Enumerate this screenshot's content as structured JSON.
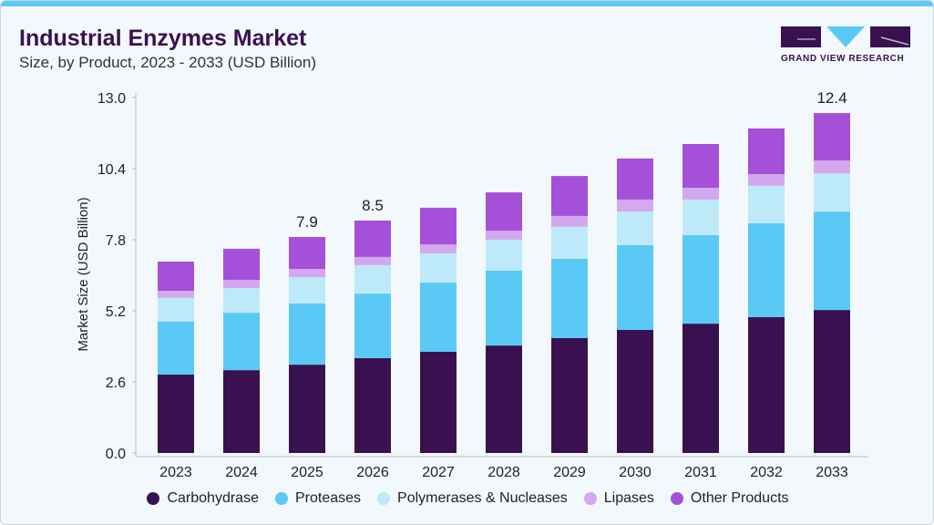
{
  "header": {
    "title": "Industrial Enzymes Market",
    "subtitle": "Size, by Product, 2023 - 2033 (USD Billion)",
    "logo_text": "GRAND VIEW RESEARCH"
  },
  "chart_data": {
    "type": "bar",
    "stacked": true,
    "title": "Industrial Enzymes Market",
    "subtitle": "Size, by Product, 2023 - 2033 (USD Billion)",
    "xlabel": "",
    "ylabel": "Market Size (USD Billion)",
    "ylim": [
      0,
      13.0
    ],
    "yticks": [
      "0.0",
      "2.6",
      "5.2",
      "7.8",
      "10.4",
      "13.0"
    ],
    "grid": false,
    "legend_position": "bottom",
    "categories": [
      "2023",
      "2024",
      "2025",
      "2026",
      "2027",
      "2028",
      "2029",
      "2030",
      "2031",
      "2032",
      "2033"
    ],
    "series": [
      {
        "name": "Carbohydrase",
        "color": "#3a1150",
        "values": [
          2.87,
          3.03,
          3.23,
          3.47,
          3.7,
          3.93,
          4.2,
          4.5,
          4.73,
          4.97,
          5.23
        ]
      },
      {
        "name": "Proteases",
        "color": "#5bc9f5",
        "values": [
          1.93,
          2.1,
          2.24,
          2.36,
          2.53,
          2.74,
          2.9,
          3.1,
          3.24,
          3.43,
          3.6
        ]
      },
      {
        "name": "Polymerases & Nucleases",
        "color": "#bde9f9",
        "values": [
          0.87,
          0.9,
          0.96,
          1.04,
          1.07,
          1.13,
          1.17,
          1.23,
          1.3,
          1.37,
          1.4
        ]
      },
      {
        "name": "Lipases",
        "color": "#d3a8ee",
        "values": [
          0.26,
          0.3,
          0.3,
          0.3,
          0.33,
          0.33,
          0.4,
          0.44,
          0.43,
          0.43,
          0.47
        ]
      },
      {
        "name": "Other Products",
        "color": "#a550d8",
        "values": [
          1.07,
          1.14,
          1.17,
          1.33,
          1.34,
          1.4,
          1.46,
          1.5,
          1.6,
          1.67,
          1.73
        ]
      }
    ],
    "data_labels": [
      {
        "category": "2025",
        "text": "7.9"
      },
      {
        "category": "2026",
        "text": "8.5"
      },
      {
        "category": "2033",
        "text": "12.4"
      }
    ]
  }
}
